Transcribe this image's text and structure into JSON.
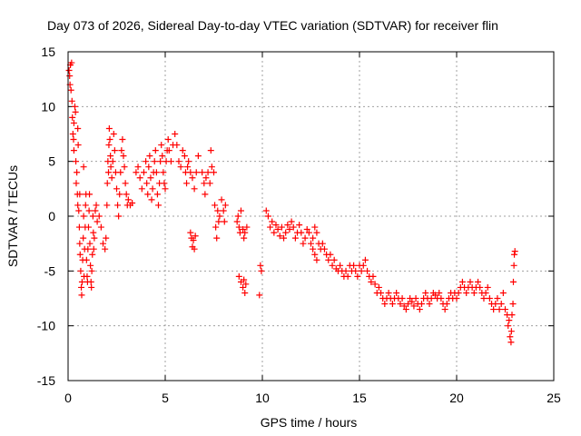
{
  "chart_data": {
    "type": "scatter",
    "title": "Day 073 of 2026, Sidereal Day-to-day VTEC variation (SDTVAR) for receiver flin",
    "xlabel": "GPS time / hours",
    "ylabel": "SDTVAR / TECUs",
    "xlim": [
      0,
      25
    ],
    "ylim": [
      -15,
      15
    ],
    "xticks": [
      0,
      5,
      10,
      15,
      20,
      25
    ],
    "yticks": [
      -15,
      -10,
      -5,
      0,
      5,
      10,
      15
    ],
    "grid": true,
    "marker": "+",
    "series": [
      {
        "name": "SDTVAR",
        "color": "#ff0000",
        "points": [
          [
            0.05,
            13.3
          ],
          [
            0.08,
            12.8
          ],
          [
            0.1,
            12.0
          ],
          [
            0.12,
            13.8
          ],
          [
            0.15,
            11.5
          ],
          [
            0.18,
            14.0
          ],
          [
            0.2,
            10.5
          ],
          [
            0.22,
            9.0
          ],
          [
            0.25,
            7.5
          ],
          [
            0.28,
            7.0
          ],
          [
            0.3,
            6.0
          ],
          [
            0.3,
            8.5
          ],
          [
            0.35,
            10.0
          ],
          [
            0.38,
            9.5
          ],
          [
            0.4,
            5.0
          ],
          [
            0.42,
            3.0
          ],
          [
            0.45,
            4.0
          ],
          [
            0.48,
            2.0
          ],
          [
            0.5,
            1.0
          ],
          [
            0.5,
            8.0
          ],
          [
            0.52,
            6.5
          ],
          [
            0.55,
            0.5
          ],
          [
            0.58,
            -1.0
          ],
          [
            0.6,
            -2.5
          ],
          [
            0.6,
            2.0
          ],
          [
            0.62,
            -3.5
          ],
          [
            0.65,
            -5.0
          ],
          [
            0.68,
            -6.5
          ],
          [
            0.7,
            -7.2
          ],
          [
            0.72,
            -6.0
          ],
          [
            0.75,
            -4.0
          ],
          [
            0.78,
            -2.0
          ],
          [
            0.8,
            0.0
          ],
          [
            0.8,
            4.5
          ],
          [
            0.82,
            -5.5
          ],
          [
            0.85,
            -3.0
          ],
          [
            0.88,
            -1.0
          ],
          [
            0.9,
            1.0
          ],
          [
            0.92,
            2.0
          ],
          [
            0.95,
            -4.0
          ],
          [
            0.98,
            -5.5
          ],
          [
            1.0,
            -6.0
          ],
          [
            1.02,
            -3.0
          ],
          [
            1.05,
            -1.0
          ],
          [
            1.08,
            0.5
          ],
          [
            1.1,
            2.0
          ],
          [
            1.12,
            -2.5
          ],
          [
            1.15,
            -4.5
          ],
          [
            1.18,
            -6.0
          ],
          [
            1.2,
            -6.5
          ],
          [
            1.22,
            -5.0
          ],
          [
            1.25,
            -3.5
          ],
          [
            1.28,
            0.0
          ],
          [
            1.3,
            -1.5
          ],
          [
            1.32,
            -3.0
          ],
          [
            1.35,
            -2.0
          ],
          [
            1.4,
            0.5
          ],
          [
            1.45,
            1.0
          ],
          [
            1.5,
            -0.5
          ],
          [
            1.6,
            0.0
          ],
          [
            1.7,
            -1.0
          ],
          [
            1.8,
            -2.5
          ],
          [
            1.9,
            -3.0
          ],
          [
            1.95,
            -2.0
          ],
          [
            2.0,
            1.0
          ],
          [
            2.02,
            3.0
          ],
          [
            2.05,
            5.0
          ],
          [
            2.08,
            4.0
          ],
          [
            2.1,
            6.5
          ],
          [
            2.12,
            8.0
          ],
          [
            2.15,
            7.0
          ],
          [
            2.18,
            5.5
          ],
          [
            2.2,
            4.5
          ],
          [
            2.25,
            3.5
          ],
          [
            2.3,
            5.0
          ],
          [
            2.35,
            7.5
          ],
          [
            2.4,
            6.0
          ],
          [
            2.45,
            4.0
          ],
          [
            2.5,
            2.5
          ],
          [
            2.55,
            1.0
          ],
          [
            2.6,
            0.0
          ],
          [
            2.65,
            2.0
          ],
          [
            2.7,
            4.0
          ],
          [
            2.75,
            6.0
          ],
          [
            2.8,
            7.0
          ],
          [
            2.85,
            5.5
          ],
          [
            2.9,
            4.5
          ],
          [
            2.95,
            3.0
          ],
          [
            3.0,
            2.0
          ],
          [
            3.05,
            1.0
          ],
          [
            3.1,
            1.5
          ],
          [
            3.2,
            1.0
          ],
          [
            3.3,
            1.2
          ],
          [
            3.5,
            4.0
          ],
          [
            3.6,
            4.5
          ],
          [
            3.7,
            3.5
          ],
          [
            3.8,
            2.5
          ],
          [
            3.9,
            4.0
          ],
          [
            4.0,
            5.0
          ],
          [
            4.05,
            3.0
          ],
          [
            4.1,
            2.0
          ],
          [
            4.15,
            4.5
          ],
          [
            4.2,
            5.5
          ],
          [
            4.25,
            3.5
          ],
          [
            4.3,
            1.5
          ],
          [
            4.35,
            2.5
          ],
          [
            4.4,
            4.0
          ],
          [
            4.45,
            5.0
          ],
          [
            4.5,
            6.0
          ],
          [
            4.55,
            4.0
          ],
          [
            4.6,
            2.0
          ],
          [
            4.65,
            1.0
          ],
          [
            4.7,
            3.0
          ],
          [
            4.75,
            5.0
          ],
          [
            4.8,
            6.5
          ],
          [
            4.85,
            5.5
          ],
          [
            4.9,
            4.0
          ],
          [
            4.95,
            3.0
          ],
          [
            5.0,
            2.5
          ],
          [
            5.05,
            5.0
          ],
          [
            5.1,
            6.0
          ],
          [
            5.15,
            7.0
          ],
          [
            5.2,
            6.0
          ],
          [
            5.3,
            5.0
          ],
          [
            5.4,
            6.5
          ],
          [
            5.5,
            7.5
          ],
          [
            5.6,
            6.5
          ],
          [
            5.7,
            5.0
          ],
          [
            5.8,
            4.5
          ],
          [
            5.9,
            6.0
          ],
          [
            6.0,
            5.5
          ],
          [
            6.05,
            4.0
          ],
          [
            6.1,
            3.0
          ],
          [
            6.15,
            4.5
          ],
          [
            6.2,
            5.0
          ],
          [
            6.3,
            4.0
          ],
          [
            6.4,
            3.5
          ],
          [
            6.5,
            2.5
          ],
          [
            6.6,
            4.0
          ],
          [
            6.7,
            5.5
          ],
          [
            6.3,
            -1.5
          ],
          [
            6.35,
            -2.0
          ],
          [
            6.4,
            -2.8
          ],
          [
            6.45,
            -2.2
          ],
          [
            6.5,
            -3.0
          ],
          [
            6.55,
            -1.8
          ],
          [
            6.9,
            4.0
          ],
          [
            7.0,
            3.0
          ],
          [
            7.05,
            2.0
          ],
          [
            7.1,
            3.5
          ],
          [
            7.2,
            4.0
          ],
          [
            7.3,
            3.0
          ],
          [
            7.35,
            6.0
          ],
          [
            7.4,
            4.5
          ],
          [
            7.5,
            4.0
          ],
          [
            7.55,
            1.0
          ],
          [
            7.6,
            -1.0
          ],
          [
            7.65,
            -2.0
          ],
          [
            7.7,
            0.5
          ],
          [
            7.75,
            -0.5
          ],
          [
            7.8,
            0.0
          ],
          [
            7.9,
            1.5
          ],
          [
            8.0,
            0.5
          ],
          [
            8.05,
            -0.5
          ],
          [
            8.1,
            1.0
          ],
          [
            8.7,
            -0.5
          ],
          [
            8.75,
            0.0
          ],
          [
            8.8,
            -1.0
          ],
          [
            8.85,
            -1.5
          ],
          [
            8.9,
            0.5
          ],
          [
            9.0,
            -1.2
          ],
          [
            9.05,
            -2.0
          ],
          [
            9.1,
            -1.5
          ],
          [
            9.2,
            -1.0
          ],
          [
            8.8,
            -5.5
          ],
          [
            8.9,
            -6.0
          ],
          [
            9.0,
            -6.5
          ],
          [
            9.05,
            -5.8
          ],
          [
            9.1,
            -7.0
          ],
          [
            9.15,
            -6.2
          ],
          [
            9.9,
            -4.5
          ],
          [
            9.95,
            -5.0
          ],
          [
            9.85,
            -7.2
          ],
          [
            10.2,
            0.5
          ],
          [
            10.3,
            0.0
          ],
          [
            10.4,
            -1.0
          ],
          [
            10.5,
            -0.5
          ],
          [
            10.6,
            -1.5
          ],
          [
            10.7,
            -0.8
          ],
          [
            10.8,
            -1.2
          ],
          [
            10.9,
            -1.8
          ],
          [
            11.0,
            -1.0
          ],
          [
            11.1,
            -2.0
          ],
          [
            11.2,
            -1.5
          ],
          [
            11.3,
            -0.8
          ],
          [
            11.4,
            -1.2
          ],
          [
            11.5,
            -0.5
          ],
          [
            11.6,
            -1.0
          ],
          [
            11.7,
            -2.0
          ],
          [
            11.8,
            -1.5
          ],
          [
            11.9,
            -0.8
          ],
          [
            12.0,
            -1.5
          ],
          [
            12.1,
            -2.5
          ],
          [
            12.2,
            -2.0
          ],
          [
            12.3,
            -1.2
          ],
          [
            12.4,
            -1.5
          ],
          [
            12.5,
            -2.5
          ],
          [
            12.6,
            -2.0
          ],
          [
            12.7,
            -1.0
          ],
          [
            12.8,
            -1.5
          ],
          [
            12.9,
            -2.5
          ],
          [
            13.0,
            -3.0
          ],
          [
            12.6,
            -3.0
          ],
          [
            12.7,
            -3.5
          ],
          [
            12.8,
            -4.0
          ],
          [
            13.1,
            -2.5
          ],
          [
            13.2,
            -3.0
          ],
          [
            13.3,
            -3.5
          ],
          [
            13.4,
            -4.0
          ],
          [
            13.5,
            -3.5
          ],
          [
            13.6,
            -4.5
          ],
          [
            13.7,
            -4.0
          ],
          [
            13.8,
            -4.8
          ],
          [
            13.9,
            -5.0
          ],
          [
            14.0,
            -4.5
          ],
          [
            14.1,
            -5.0
          ],
          [
            14.2,
            -5.5
          ],
          [
            14.3,
            -5.0
          ],
          [
            14.4,
            -5.5
          ],
          [
            14.5,
            -4.5
          ],
          [
            14.6,
            -5.0
          ],
          [
            14.7,
            -4.5
          ],
          [
            14.8,
            -5.0
          ],
          [
            14.9,
            -5.5
          ],
          [
            15.0,
            -4.5
          ],
          [
            15.1,
            -5.0
          ],
          [
            15.2,
            -4.5
          ],
          [
            15.3,
            -4.0
          ],
          [
            15.4,
            -5.0
          ],
          [
            15.5,
            -5.5
          ],
          [
            15.6,
            -6.0
          ],
          [
            15.7,
            -5.5
          ],
          [
            15.8,
            -6.2
          ],
          [
            15.9,
            -7.0
          ],
          [
            16.0,
            -6.5
          ],
          [
            16.1,
            -7.0
          ],
          [
            16.2,
            -7.5
          ],
          [
            16.3,
            -8.0
          ],
          [
            16.4,
            -7.5
          ],
          [
            16.5,
            -7.0
          ],
          [
            16.6,
            -7.5
          ],
          [
            16.7,
            -8.0
          ],
          [
            16.8,
            -7.5
          ],
          [
            16.9,
            -7.0
          ],
          [
            17.0,
            -7.5
          ],
          [
            17.1,
            -8.0
          ],
          [
            17.2,
            -7.5
          ],
          [
            17.3,
            -8.2
          ],
          [
            17.4,
            -8.5
          ],
          [
            17.5,
            -8.0
          ],
          [
            17.6,
            -7.5
          ],
          [
            17.7,
            -7.8
          ],
          [
            17.8,
            -8.2
          ],
          [
            17.9,
            -7.5
          ],
          [
            18.0,
            -8.0
          ],
          [
            18.1,
            -8.5
          ],
          [
            18.2,
            -8.0
          ],
          [
            18.3,
            -7.5
          ],
          [
            18.4,
            -7.0
          ],
          [
            18.5,
            -7.5
          ],
          [
            18.6,
            -8.0
          ],
          [
            18.7,
            -7.5
          ],
          [
            18.8,
            -7.0
          ],
          [
            18.9,
            -7.2
          ],
          [
            19.0,
            -7.5
          ],
          [
            19.1,
            -7.0
          ],
          [
            19.2,
            -7.5
          ],
          [
            19.3,
            -8.0
          ],
          [
            19.4,
            -8.5
          ],
          [
            19.5,
            -8.0
          ],
          [
            19.6,
            -7.5
          ],
          [
            19.7,
            -7.0
          ],
          [
            19.8,
            -7.5
          ],
          [
            19.9,
            -7.0
          ],
          [
            20.0,
            -7.5
          ],
          [
            20.1,
            -7.0
          ],
          [
            20.2,
            -6.5
          ],
          [
            20.3,
            -6.0
          ],
          [
            20.4,
            -6.5
          ],
          [
            20.5,
            -7.0
          ],
          [
            20.6,
            -6.5
          ],
          [
            20.7,
            -6.0
          ],
          [
            20.8,
            -6.5
          ],
          [
            20.9,
            -7.0
          ],
          [
            21.0,
            -6.5
          ],
          [
            21.1,
            -6.0
          ],
          [
            21.2,
            -6.5
          ],
          [
            21.3,
            -7.0
          ],
          [
            21.4,
            -7.5
          ],
          [
            21.5,
            -7.0
          ],
          [
            21.6,
            -6.5
          ],
          [
            21.7,
            -7.5
          ],
          [
            21.8,
            -8.0
          ],
          [
            21.9,
            -8.5
          ],
          [
            22.0,
            -8.0
          ],
          [
            22.1,
            -7.5
          ],
          [
            22.2,
            -8.5
          ],
          [
            22.3,
            -8.0
          ],
          [
            22.4,
            -7.0
          ],
          [
            22.5,
            -8.5
          ],
          [
            22.6,
            -9.0
          ],
          [
            22.65,
            -10.0
          ],
          [
            22.7,
            -9.5
          ],
          [
            22.75,
            -11.0
          ],
          [
            22.8,
            -11.5
          ],
          [
            22.82,
            -10.5
          ],
          [
            22.85,
            -9.0
          ],
          [
            22.9,
            -8.0
          ],
          [
            22.92,
            -6.0
          ],
          [
            22.95,
            -4.5
          ],
          [
            22.97,
            -3.5
          ],
          [
            23.0,
            -3.2
          ]
        ]
      }
    ]
  }
}
